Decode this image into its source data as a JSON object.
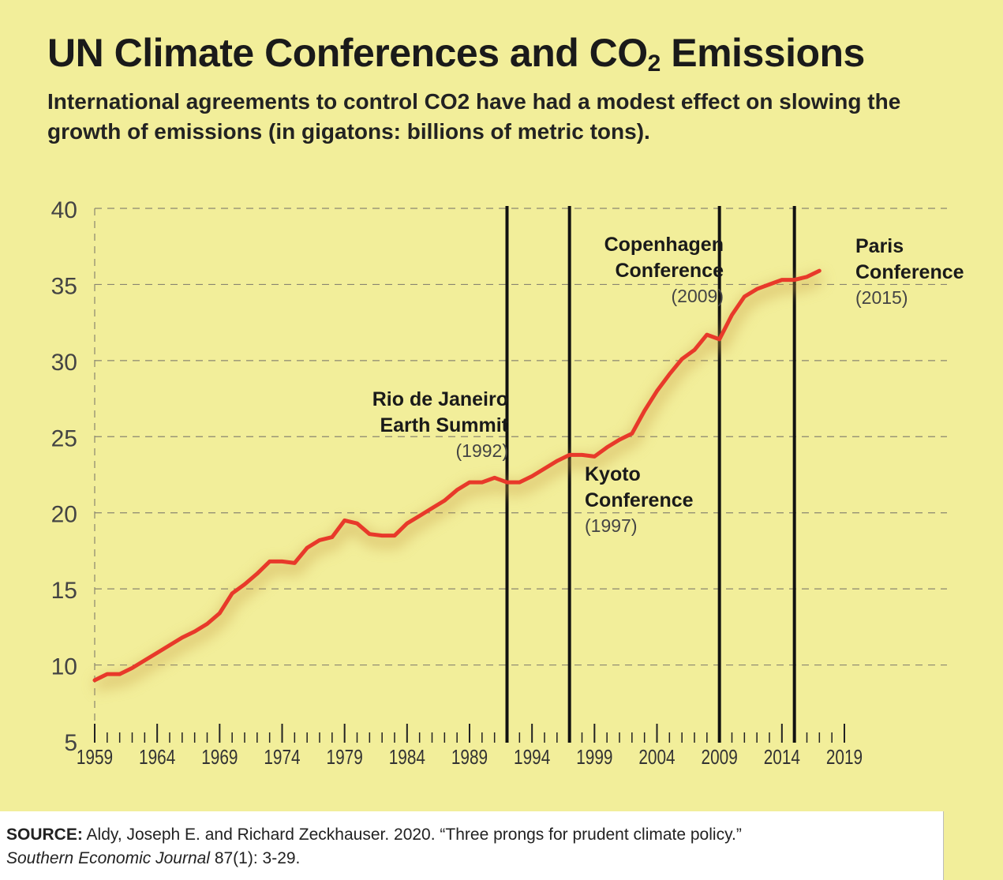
{
  "title": {
    "main": "UN Climate Conferences and CO",
    "sub": "2",
    "tail": " Emissions"
  },
  "subtitle": "International agreements to control CO2 have had a modest effect on slowing the growth of emissions (in gigatons: billions of metric tons).",
  "source": {
    "label": "SOURCE:",
    "citation": "Aldy, Joseph E. and Richard Zeckhauser. 2020. “Three prongs for prudent climate policy.”",
    "journal": "Southern Economic Journal",
    "volume": "87(1): 3-29."
  },
  "colors": {
    "background": "#f2ee9a",
    "line": "#e8392a",
    "line_shadow": "#c9a24a",
    "grid": "#8a8670",
    "event_line": "#111111"
  },
  "chart_data": {
    "type": "line",
    "title": "UN Climate Conferences and CO2 Emissions",
    "xlabel": "",
    "ylabel": "",
    "xlim": [
      1959,
      2019
    ],
    "ylim": [
      5,
      40
    ],
    "y_ticks": [
      5,
      10,
      15,
      20,
      25,
      30,
      35,
      40
    ],
    "x_tick_labels": [
      "1959",
      "1964",
      "1969",
      "1974",
      "1979",
      "1984",
      "1989",
      "1994",
      "1999",
      "2004",
      "2009",
      "2014",
      "2019"
    ],
    "grid": true,
    "series": [
      {
        "x": [
          1959,
          1960,
          1961,
          1962,
          1963,
          1964,
          1965,
          1966,
          1967,
          1968,
          1969,
          1970,
          1971,
          1972,
          1973,
          1974,
          1975,
          1976,
          1977,
          1978,
          1979,
          1980,
          1981,
          1982,
          1983,
          1984,
          1985,
          1986,
          1987,
          1988,
          1989,
          1990,
          1991,
          1992,
          1993,
          1994,
          1995,
          1996,
          1997,
          1998,
          1999,
          2000,
          2001,
          2002,
          2003,
          2004,
          2005,
          2006,
          2007,
          2008,
          2009,
          2010,
          2011,
          2012,
          2013,
          2014,
          2015,
          2016,
          2017
        ],
        "values": [
          9.0,
          9.4,
          9.4,
          9.8,
          10.3,
          10.8,
          11.3,
          11.8,
          12.2,
          12.7,
          13.4,
          14.7,
          15.3,
          16.0,
          16.8,
          16.8,
          16.7,
          17.7,
          18.2,
          18.4,
          19.5,
          19.3,
          18.6,
          18.5,
          18.5,
          19.3,
          19.8,
          20.3,
          20.8,
          21.5,
          22.0,
          22.0,
          22.3,
          22.0,
          22.0,
          22.4,
          22.9,
          23.4,
          23.8,
          23.8,
          23.7,
          24.3,
          24.8,
          25.2,
          26.7,
          28.0,
          29.1,
          30.1,
          30.7,
          31.7,
          31.4,
          33.0,
          34.2,
          34.7,
          35.0,
          35.3,
          35.3,
          35.5,
          35.9
        ]
      }
    ],
    "annotations": [
      {
        "year": 1992,
        "lines": [
          "Rio de Janeiro",
          "Earth Summit"
        ],
        "date": "(1992)",
        "side": "left"
      },
      {
        "year": 1997,
        "lines": [
          "Kyoto",
          "Conference"
        ],
        "date": "(1997)",
        "side": "right"
      },
      {
        "year": 2009,
        "lines": [
          "Copenhagen",
          "Conference"
        ],
        "date": "(2009)",
        "side": "left"
      },
      {
        "year": 2015,
        "lines": [
          "Paris",
          "Conference"
        ],
        "date": "(2015)",
        "side": "right"
      }
    ]
  }
}
